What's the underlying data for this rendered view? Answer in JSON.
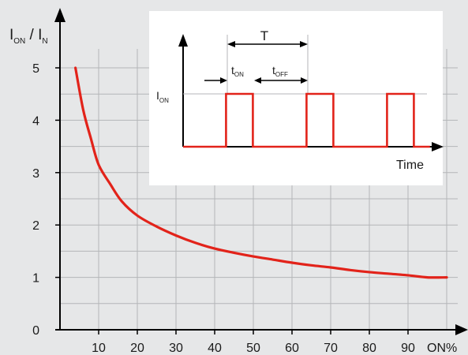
{
  "chart_data": [
    {
      "type": "line",
      "title": "",
      "ylabel": "I_ON / I_N",
      "xlabel": "ON%",
      "xlim": [
        0,
        100
      ],
      "ylim": [
        0,
        5
      ],
      "grid": true,
      "x_ticks": [
        10,
        20,
        30,
        40,
        50,
        60,
        70,
        80,
        90
      ],
      "y_ticks": [
        0,
        1,
        2,
        3,
        4,
        5
      ],
      "series": [
        {
          "color": "#e2231a",
          "x": [
            4,
            6,
            8,
            10,
            13,
            16,
            20,
            25,
            30,
            35,
            40,
            45,
            50,
            55,
            60,
            65,
            70,
            75,
            80,
            85,
            90,
            95,
            100
          ],
          "y": [
            5.0,
            4.2,
            3.65,
            3.15,
            2.78,
            2.45,
            2.18,
            1.97,
            1.8,
            1.66,
            1.55,
            1.47,
            1.4,
            1.34,
            1.28,
            1.23,
            1.19,
            1.14,
            1.1,
            1.07,
            1.04,
            1.0,
            1.0
          ]
        }
      ]
    },
    {
      "type": "line",
      "title": "",
      "xlabel": "Time",
      "ylabel": "",
      "level_label": "I_ON",
      "period_label": "T",
      "on_label": "t_ON",
      "off_label": "t_OFF",
      "grid": false,
      "series": [
        {
          "color": "#e2231a",
          "x": [
            0,
            16,
            16,
            26,
            26,
            46,
            46,
            56,
            56,
            76,
            76,
            86,
            86,
            92
          ],
          "y": [
            0,
            0,
            1,
            1,
            0,
            0,
            1,
            1,
            0,
            0,
            1,
            1,
            0,
            0
          ]
        }
      ]
    }
  ]
}
